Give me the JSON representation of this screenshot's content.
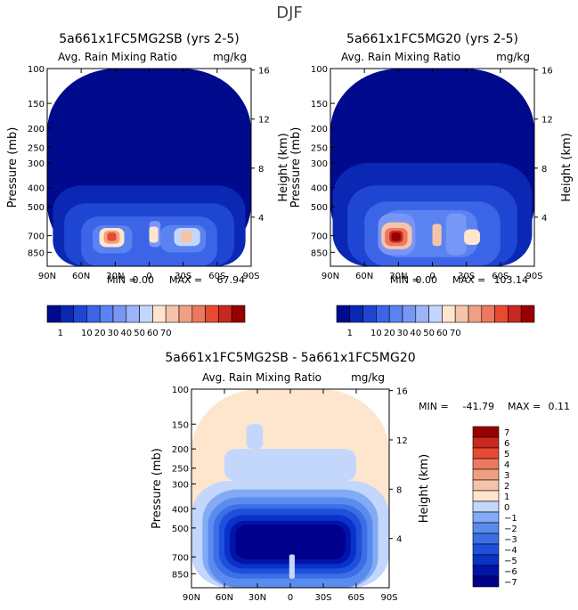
{
  "figure_title": "DJF",
  "colors": {
    "scale": [
      "#000a8c",
      "#0a28b4",
      "#1e46d2",
      "#3c64e6",
      "#5a82f0",
      "#7896f5",
      "#9bb4fa",
      "#c3d7fc",
      "#fde6cd",
      "#f5c3aa",
      "#f0a082",
      "#eb785f",
      "#e64b32",
      "#c8281e",
      "#960000"
    ],
    "diff_scale": [
      "#00008c",
      "#0014aa",
      "#0a32c8",
      "#1e50dc",
      "#3c6ee6",
      "#5a8cf0",
      "#82aaf5",
      "#c3d7fc",
      "#fde6cd",
      "#f5c3aa",
      "#f0a082",
      "#eb785f",
      "#e64b32",
      "#c8281e",
      "#960000"
    ]
  },
  "chart_data": [
    {
      "type": "heatmap",
      "title": "5a661x1FC5MG2SB (yrs 2-5)",
      "field_label": "Avg. Rain Mixing Ratio",
      "units": "mg/kg",
      "xlabel": "",
      "ylabel": "Pressure (mb)",
      "ylabel2": "Height (km)",
      "x_ticks": [
        "90N",
        "60N",
        "30N",
        "0",
        "30S",
        "60S",
        "90S"
      ],
      "y_ticks": [
        100,
        150,
        200,
        250,
        300,
        400,
        500,
        700,
        850
      ],
      "y2_ticks": [
        4,
        8,
        12,
        16
      ],
      "ylim": [
        1000,
        100
      ],
      "min_label": "MIN =",
      "min_value": "0.00",
      "max_label": "MAX =",
      "max_value": "67.94",
      "colorbar_labels": [
        "1",
        "10",
        "20",
        "30",
        "40",
        "50",
        "60",
        "70"
      ],
      "cells": [
        {
          "lat_s": -90,
          "lat_n": 90,
          "p_top": 100,
          "p_bot": 1000,
          "level": 0
        },
        {
          "lat_s": -85,
          "lat_n": 85,
          "p_top": 390,
          "p_bot": 1000,
          "level": 1
        },
        {
          "lat_s": -75,
          "lat_n": 75,
          "p_top": 480,
          "p_bot": 1000,
          "level": 2
        },
        {
          "lat_s": -60,
          "lat_n": 60,
          "p_top": 560,
          "p_bot": 1000,
          "level": 3
        },
        {
          "lat_s": -50,
          "lat_n": -10,
          "p_top": 620,
          "p_bot": 850,
          "level": 4
        },
        {
          "lat_s": 15,
          "lat_n": 50,
          "p_top": 620,
          "p_bot": 860,
          "level": 4
        },
        {
          "lat_s": -10,
          "lat_n": 0,
          "p_top": 590,
          "p_bot": 800,
          "level": 5
        },
        {
          "lat_s": -45,
          "lat_n": -22,
          "p_top": 640,
          "p_bot": 790,
          "level": 7
        },
        {
          "lat_s": -38,
          "lat_n": -28,
          "p_top": 660,
          "p_bot": 760,
          "level": 9
        },
        {
          "lat_s": -8,
          "lat_n": 0,
          "p_top": 630,
          "p_bot": 760,
          "level": 8
        },
        {
          "lat_s": 22,
          "lat_n": 44,
          "p_top": 640,
          "p_bot": 800,
          "level": 8
        },
        {
          "lat_s": 26,
          "lat_n": 40,
          "p_top": 660,
          "p_bot": 770,
          "level": 10
        },
        {
          "lat_s": 29,
          "lat_n": 37,
          "p_top": 675,
          "p_bot": 745,
          "level": 12
        }
      ]
    },
    {
      "type": "heatmap",
      "title": "5a661x1FC5MG20 (yrs 2-5)",
      "field_label": "Avg. Rain Mixing Ratio",
      "units": "mg/kg",
      "xlabel": "",
      "ylabel": "Pressure (mb)",
      "ylabel2": "Height (km)",
      "x_ticks": [
        "90N",
        "60N",
        "30N",
        "0",
        "30S",
        "60S",
        "90S"
      ],
      "y_ticks": [
        100,
        150,
        200,
        250,
        300,
        400,
        500,
        700,
        850
      ],
      "y2_ticks": [
        4,
        8,
        12,
        16
      ],
      "ylim": [
        1000,
        100
      ],
      "min_label": "MIN =",
      "min_value": "0.00",
      "max_label": "MAX =",
      "max_value": "103.14",
      "colorbar_labels": [
        "1",
        "10",
        "20",
        "30",
        "40",
        "50",
        "60",
        "70"
      ],
      "cells": [
        {
          "lat_s": -90,
          "lat_n": 90,
          "p_top": 100,
          "p_bot": 1000,
          "level": 0
        },
        {
          "lat_s": -88,
          "lat_n": 88,
          "p_top": 300,
          "p_bot": 1000,
          "level": 1
        },
        {
          "lat_s": -75,
          "lat_n": 75,
          "p_top": 390,
          "p_bot": 1000,
          "level": 2
        },
        {
          "lat_s": -60,
          "lat_n": 60,
          "p_top": 470,
          "p_bot": 1000,
          "level": 3
        },
        {
          "lat_s": -40,
          "lat_n": 45,
          "p_top": 520,
          "p_bot": 900,
          "level": 4
        },
        {
          "lat_s": -30,
          "lat_n": -12,
          "p_top": 540,
          "p_bot": 880,
          "level": 5
        },
        {
          "lat_s": 15,
          "lat_n": 48,
          "p_top": 540,
          "p_bot": 880,
          "level": 5
        },
        {
          "lat_s": -42,
          "lat_n": -28,
          "p_top": 650,
          "p_bot": 780,
          "level": 8
        },
        {
          "lat_s": -8,
          "lat_n": 0,
          "p_top": 610,
          "p_bot": 790,
          "level": 9
        },
        {
          "lat_s": 18,
          "lat_n": 45,
          "p_top": 600,
          "p_bot": 820,
          "level": 9
        },
        {
          "lat_s": 22,
          "lat_n": 42,
          "p_top": 640,
          "p_bot": 790,
          "level": 11
        },
        {
          "lat_s": 26,
          "lat_n": 38,
          "p_top": 660,
          "p_bot": 760,
          "level": 13
        },
        {
          "lat_s": 28,
          "lat_n": 36,
          "p_top": 675,
          "p_bot": 745,
          "level": 14
        }
      ]
    },
    {
      "type": "heatmap",
      "title": "5a661x1FC5MG2SB - 5a661x1FC5MG20",
      "field_label": "Avg. Rain Mixing Ratio",
      "units": "mg/kg",
      "xlabel": "",
      "ylabel": "Pressure (mb)",
      "ylabel2": "Height (km)",
      "x_ticks": [
        "90N",
        "60N",
        "30N",
        "0",
        "30S",
        "60S",
        "90S"
      ],
      "y_ticks": [
        100,
        150,
        200,
        250,
        300,
        400,
        500,
        700,
        850
      ],
      "y2_ticks": [
        4,
        8,
        12,
        16
      ],
      "ylim": [
        1000,
        100
      ],
      "min_label": "MIN =",
      "min_value": "-41.79",
      "max_label": "MAX =",
      "max_value": "0.11",
      "colorbar_labels": [
        "7",
        "6",
        "5",
        "4",
        "3",
        "2",
        "1",
        "0",
        "−1",
        "−2",
        "−3",
        "−4",
        "−5",
        "−6",
        "−7"
      ],
      "cells": [
        {
          "lat_s": -90,
          "lat_n": 90,
          "p_top": 100,
          "p_bot": 1000,
          "level": 8
        },
        {
          "lat_s": -90,
          "lat_n": 90,
          "p_top": 290,
          "p_bot": 1000,
          "level": 7
        },
        {
          "lat_s": -60,
          "lat_n": 60,
          "p_top": 200,
          "p_bot": 290,
          "level": 7
        },
        {
          "lat_s": 25,
          "lat_n": 40,
          "p_top": 150,
          "p_bot": 200,
          "level": 7
        },
        {
          "lat_s": -80,
          "lat_n": 80,
          "p_top": 320,
          "p_bot": 1000,
          "level": 6
        },
        {
          "lat_s": -75,
          "lat_n": 75,
          "p_top": 350,
          "p_bot": 1000,
          "level": 5
        },
        {
          "lat_s": -70,
          "lat_n": 70,
          "p_top": 380,
          "p_bot": 900,
          "level": 4
        },
        {
          "lat_s": -65,
          "lat_n": 65,
          "p_top": 400,
          "p_bot": 850,
          "level": 3
        },
        {
          "lat_s": -60,
          "lat_n": 60,
          "p_top": 430,
          "p_bot": 800,
          "level": 2
        },
        {
          "lat_s": -55,
          "lat_n": 55,
          "p_top": 460,
          "p_bot": 760,
          "level": 1
        },
        {
          "lat_s": -50,
          "lat_n": 50,
          "p_top": 480,
          "p_bot": 720,
          "level": 0
        },
        {
          "lat_s": -4,
          "lat_n": 1,
          "p_top": 680,
          "p_bot": 900,
          "level": 7
        }
      ]
    }
  ]
}
